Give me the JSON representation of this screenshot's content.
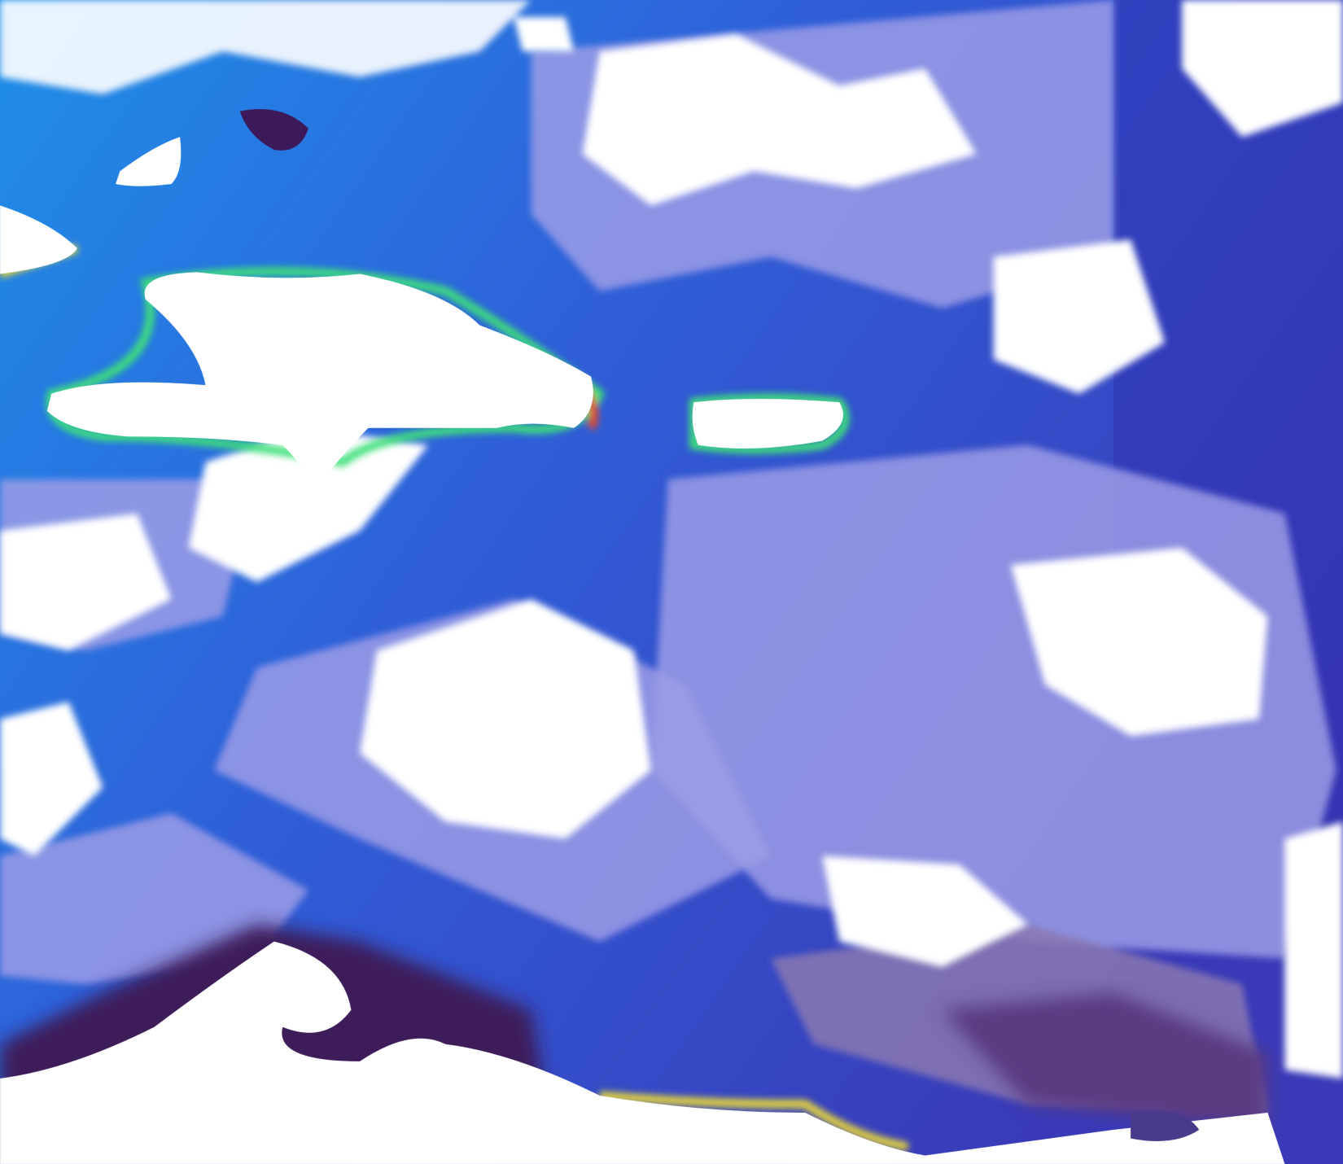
{
  "map": {
    "colors": {
      "ocean_cyan": "#1f8fe8",
      "ocean_blue": "#2f5fd8",
      "ocean_deep": "#3a3ab8",
      "cloud_lavender": "#9c9ce6",
      "cloud_mauve": "#8a78b0",
      "dark_purple": "#3c1a5a",
      "land_mask": "#ffffff",
      "coastal_green": "#3fe07a",
      "coastal_yellow": "#e8d838",
      "coastal_red": "#e84a2a"
    }
  }
}
